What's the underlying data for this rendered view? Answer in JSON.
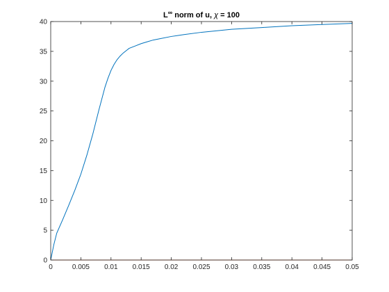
{
  "chart_data": {
    "type": "line",
    "title": {
      "prefix": "L",
      "superscript": "∞",
      "middle": " norm of u, ",
      "symbol": "χ",
      "suffix": " = 100"
    },
    "xlabel": "",
    "ylabel": "",
    "xlim": [
      0,
      0.05
    ],
    "ylim": [
      0,
      40
    ],
    "xticks": [
      0,
      0.005,
      0.01,
      0.015,
      0.02,
      0.025,
      0.03,
      0.035,
      0.04,
      0.045,
      0.05
    ],
    "xtick_labels": [
      "0",
      "0.005",
      "0.01",
      "0.015",
      "0.02",
      "0.025",
      "0.03",
      "0.035",
      "0.04",
      "0.045",
      "0.05"
    ],
    "yticks": [
      0,
      5,
      10,
      15,
      20,
      25,
      30,
      35,
      40
    ],
    "ytick_labels": [
      "0",
      "5",
      "10",
      "15",
      "20",
      "25",
      "30",
      "35",
      "40"
    ],
    "grid": false,
    "legend": "none",
    "series": [
      {
        "color": "#0072bd",
        "x": [
          0,
          0.0005,
          0.001,
          0.002,
          0.003,
          0.004,
          0.005,
          0.006,
          0.007,
          0.008,
          0.009,
          0.0095,
          0.01,
          0.0105,
          0.011,
          0.0115,
          0.012,
          0.0125,
          0.013,
          0.014,
          0.015,
          0.016,
          0.017,
          0.018,
          0.02,
          0.022,
          0.025,
          0.03,
          0.035,
          0.04,
          0.045,
          0.05
        ],
        "y": [
          0,
          2.5,
          4.5,
          6.8,
          9.2,
          11.7,
          14.4,
          17.6,
          21.2,
          25.2,
          29.0,
          30.5,
          31.8,
          32.8,
          33.6,
          34.2,
          34.7,
          35.1,
          35.5,
          35.9,
          36.3,
          36.6,
          36.9,
          37.1,
          37.5,
          37.8,
          38.2,
          38.7,
          39.0,
          39.3,
          39.5,
          39.7
        ]
      },
      {
        "color": "#d95319",
        "x": [
          0,
          0.05
        ],
        "y": [
          0,
          0
        ]
      }
    ]
  }
}
